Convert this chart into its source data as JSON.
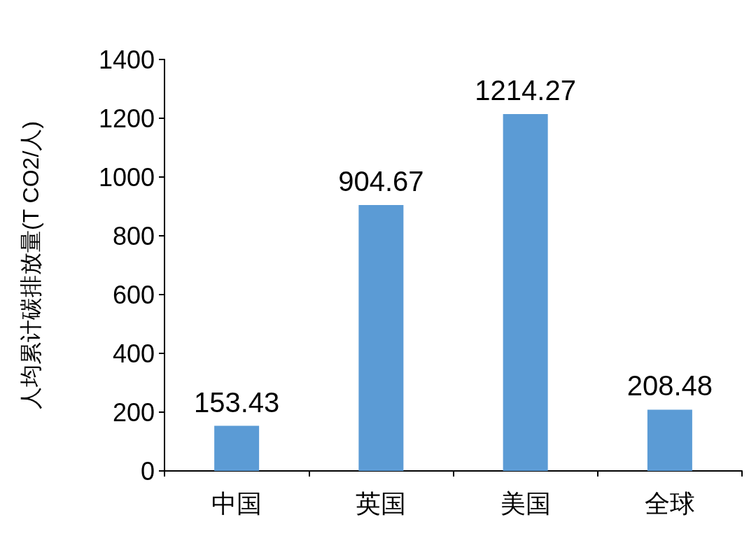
{
  "chart_data": {
    "type": "bar",
    "ylabel": "人均累计碳排放量(T CO2/人)",
    "categories": [
      "中国",
      "英国",
      "美国",
      "全球"
    ],
    "values": [
      153.43,
      904.67,
      1214.27,
      208.48
    ],
    "color": "#5b9bd5",
    "ylim": [
      0,
      1400
    ],
    "yticks": [
      0,
      200,
      400,
      600,
      800,
      1000,
      1200,
      1400
    ],
    "grid": false,
    "data_labels": true
  }
}
